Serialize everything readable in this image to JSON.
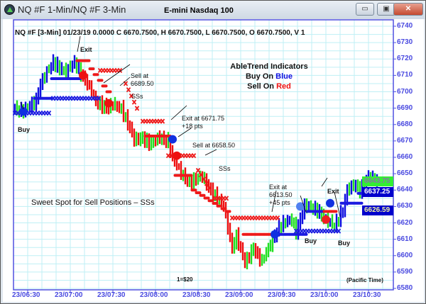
{
  "window": {
    "title": "NQ #F 1-Min/NQ #F 3-Min",
    "chart_title": "E-mini Nasdaq 100",
    "minimize": "▭",
    "maximize": "▣",
    "close": "✕"
  },
  "header_line": "NQ #F [3-Min] 01/23/19  0.0000 C 6670.7500, H 6670.7500, L 6670.7500, O 6670.7500, V 1",
  "legend": {
    "line1": "AbleTrend Indicators",
    "line2a": "Buy On ",
    "line2b": "Blue",
    "line3a": "Sell On ",
    "line3b": "Red",
    "blue": "#1010e0",
    "red": "#ee1010"
  },
  "annotations": {
    "exit1": "Exit",
    "sell1_a": "Sell at",
    "sell1_b": "6689.50",
    "sss1": "SSs",
    "buy1": "Buy",
    "exit2_a": "Exit at 6671.75",
    "exit2_b": "+18 pts",
    "sell2": "Sell at 6658.50",
    "sss2": "SSs",
    "exit3_a": "Exit at",
    "exit3_b": "6613.50",
    "exit3_c": "+45 pts",
    "exit4": "Exit",
    "buy2": "Buy",
    "buy3": "Buy",
    "sweet": "Sweet Spot for Sell Positions – SSs",
    "scale": "1=$20",
    "tz": "(Pacific Time)"
  },
  "price_boxes": [
    {
      "value": "6643.75",
      "bg": "#33ee33",
      "fg": "#8a6fb0"
    },
    {
      "value": "6637.25",
      "bg": "#0000cc",
      "fg": "#ffffff"
    },
    {
      "value": "6626.59",
      "bg": "#0000cc",
      "fg": "#f0f0a0"
    }
  ],
  "chart_data": {
    "type": "candlestick-style price bars with indicators",
    "y_ticks": [
      "6740",
      "6730",
      "6720",
      "6710",
      "6700",
      "6690",
      "6680",
      "6670",
      "6660",
      "6650",
      "6640",
      "6630",
      "6620",
      "6610",
      "6600",
      "6590",
      "6580"
    ],
    "ylim": [
      6580,
      6740
    ],
    "x_ticks": [
      "23/06:30",
      "23/07:00",
      "23/07:30",
      "23/08:00",
      "23/08:30",
      "23/09:00",
      "23/09:30",
      "23/10:00",
      "23/10:30"
    ],
    "grid": true,
    "colors": {
      "up": "#1010e0",
      "down": "#ee1010",
      "counter": "#22e022"
    },
    "price_path": [
      [
        "06:21",
        6690
      ],
      [
        "06:27",
        6688
      ],
      [
        "06:36",
        6695
      ],
      [
        "06:39",
        6705
      ],
      [
        "06:48",
        6718
      ],
      [
        "06:57",
        6712
      ],
      [
        "07:03",
        6718
      ],
      [
        "07:12",
        6705
      ],
      [
        "07:18",
        6694
      ],
      [
        "07:27",
        6690
      ],
      [
        "07:30",
        6692
      ],
      [
        "07:36",
        6690
      ],
      [
        "07:42",
        6678
      ],
      [
        "07:45",
        6670
      ],
      [
        "07:51",
        6672
      ],
      [
        "07:57",
        6668
      ],
      [
        "08:03",
        6672
      ],
      [
        "08:09",
        6670
      ],
      [
        "08:12",
        6660
      ],
      [
        "08:18",
        6650
      ],
      [
        "08:24",
        6645
      ],
      [
        "08:33",
        6648
      ],
      [
        "08:39",
        6640
      ],
      [
        "08:48",
        6630
      ],
      [
        "08:54",
        6605
      ],
      [
        "08:57",
        6612
      ],
      [
        "09:03",
        6595
      ],
      [
        "09:09",
        6605
      ],
      [
        "09:15",
        6596
      ],
      [
        "09:24",
        6613
      ],
      [
        "09:27",
        6618
      ],
      [
        "09:36",
        6622
      ],
      [
        "09:39",
        6615
      ],
      [
        "09:45",
        6630
      ],
      [
        "09:54",
        6628
      ],
      [
        "10:00",
        6622
      ],
      [
        "10:06",
        6618
      ],
      [
        "10:12",
        6628
      ],
      [
        "10:15",
        6640
      ],
      [
        "10:21",
        6643
      ],
      [
        "10:24",
        6640
      ],
      [
        "10:30",
        6648
      ],
      [
        "10:36",
        6645
      ]
    ],
    "regimes": [
      {
        "from": "06:21",
        "to": "07:09",
        "trend": "up"
      },
      {
        "from": "07:09",
        "to": "09:24",
        "trend": "down"
      },
      {
        "from": "09:24",
        "to": "10:36",
        "trend": "up"
      }
    ],
    "stop_dashes": [
      {
        "color": "blue",
        "from": "06:36",
        "to": "06:45",
        "price": 6696
      },
      {
        "color": "blue",
        "from": "06:48",
        "to": "07:06",
        "price": 6708
      },
      {
        "color": "red",
        "from": "07:06",
        "to": "07:12",
        "price": 6719
      },
      {
        "color": "red",
        "from": "07:15",
        "to": "07:27",
        "price": 6714,
        "to_price": 6700
      },
      {
        "color": "red",
        "from": "07:54",
        "to": "08:09",
        "price": 6673
      },
      {
        "color": "red",
        "from": "08:15",
        "to": "08:24",
        "price": 6649
      },
      {
        "color": "red",
        "from": "08:27",
        "to": "08:51",
        "price": 6640,
        "to_price": 6627
      },
      {
        "color": "red",
        "from": "09:03",
        "to": "09:21",
        "price": 6613
      },
      {
        "color": "blue",
        "from": "09:24",
        "to": "09:45",
        "price": 6613
      },
      {
        "color": "blue",
        "from": "09:48",
        "to": "09:57",
        "price": 6627
      },
      {
        "color": "red",
        "from": "10:00",
        "to": "10:06",
        "price": 6627
      },
      {
        "color": "blue",
        "from": "10:12",
        "to": "10:24",
        "price": 6632
      },
      {
        "color": "blue",
        "from": "10:24",
        "to": "10:33",
        "price": 6638
      }
    ],
    "stop_crosses": [
      {
        "color": "blue",
        "from": "06:21",
        "to": "06:45",
        "price": 6687
      },
      {
        "color": "blue",
        "from": "06:48",
        "to": "07:21",
        "price": 6696
      },
      {
        "color": "red",
        "from": "07:21",
        "to": "07:36",
        "price": 6713
      },
      {
        "color": "red",
        "from": "07:39",
        "to": "07:48",
        "price": 6705,
        "to_price": 6688
      },
      {
        "color": "red",
        "from": "07:51",
        "to": "08:06",
        "price": 6682
      },
      {
        "color": "red",
        "from": "08:09",
        "to": "08:27",
        "price": 6661
      },
      {
        "color": "red",
        "from": "08:30",
        "to": "08:39",
        "price": 6652,
        "to_price": 6640
      },
      {
        "color": "red",
        "from": "08:42",
        "to": "08:51",
        "price": 6635
      },
      {
        "color": "red",
        "from": "08:54",
        "to": "09:27",
        "price": 6623
      },
      {
        "color": "blue",
        "from": "09:39",
        "to": "10:09",
        "price": 6615
      },
      {
        "color": "blue",
        "from": "10:27",
        "to": "10:36",
        "price": 6627
      }
    ],
    "signals": [
      {
        "label": "Buy",
        "time": "06:27",
        "price": 6688,
        "color": "#1030e0"
      },
      {
        "label": "Exit",
        "time": "07:09",
        "price": 6710,
        "color": "#ee1010"
      },
      {
        "label": "Sell at 6689.50",
        "time": "07:27",
        "price": 6693,
        "color": "#ee1010"
      },
      {
        "label": "Exit at 6671.75",
        "time": "08:12",
        "price": 6671,
        "color": "#1030e0"
      },
      {
        "label": "Sell at 6658.50",
        "time": "08:15",
        "price": 6661,
        "color": "#ee1010"
      },
      {
        "label": "Exit at 6613.50",
        "time": "09:24",
        "price": 6613,
        "color": "#1030e0"
      },
      {
        "label": "Buy",
        "time": "09:42",
        "price": 6630,
        "color": "#5080f0"
      },
      {
        "label": "Exit",
        "time": "10:00",
        "price": 6622,
        "color": "#ee2020"
      },
      {
        "label": "Buy",
        "time": "10:03",
        "price": 6632,
        "color": "#1030e0"
      }
    ]
  }
}
